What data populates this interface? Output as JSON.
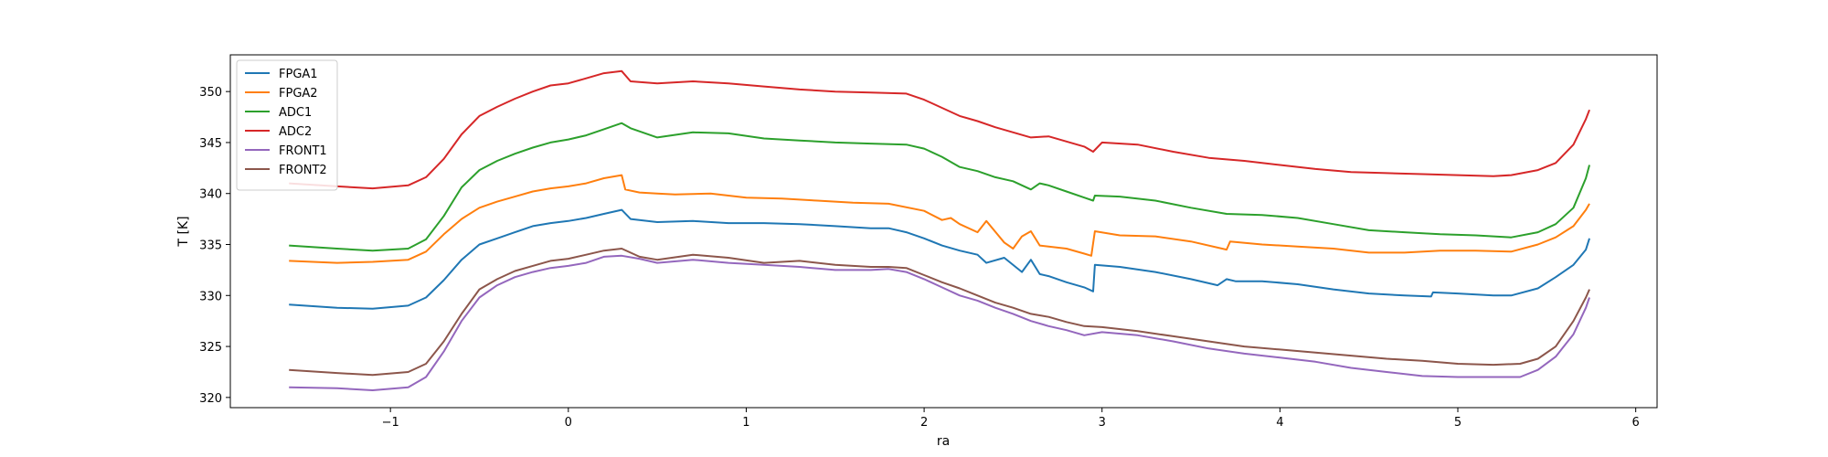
{
  "chart_data": {
    "type": "line",
    "xlabel": "ra",
    "ylabel": "T [K]",
    "xlim": [
      -1.9,
      6.12
    ],
    "ylim": [
      319,
      353.6
    ],
    "xticks": [
      -1,
      0,
      1,
      2,
      3,
      4,
      5,
      6
    ],
    "yticks": [
      320,
      325,
      330,
      335,
      340,
      345,
      350
    ],
    "grid": false,
    "legend_position": "upper-left",
    "series": [
      {
        "name": "FPGA1",
        "color": "#1f77b4",
        "x": [
          -1.57,
          -1.3,
          -1.1,
          -0.9,
          -0.8,
          -0.7,
          -0.6,
          -0.5,
          -0.4,
          -0.3,
          -0.2,
          -0.1,
          0,
          0.1,
          0.2,
          0.3,
          0.35,
          0.5,
          0.7,
          0.9,
          1.1,
          1.3,
          1.5,
          1.7,
          1.8,
          1.9,
          2.0,
          2.1,
          2.2,
          2.3,
          2.35,
          2.45,
          2.55,
          2.6,
          2.65,
          2.7,
          2.8,
          2.9,
          2.95,
          2.96,
          3.1,
          3.3,
          3.5,
          3.65,
          3.7,
          3.75,
          3.9,
          4.1,
          4.3,
          4.5,
          4.7,
          4.85,
          4.86,
          5.0,
          5.2,
          5.3,
          5.45,
          5.55,
          5.65,
          5.72,
          5.74
        ],
        "y": [
          329.1,
          328.8,
          328.7,
          329.0,
          329.8,
          331.5,
          333.5,
          335.0,
          335.6,
          336.2,
          336.8,
          337.1,
          337.3,
          337.6,
          338.0,
          338.4,
          337.5,
          337.2,
          337.3,
          337.1,
          337.1,
          337.0,
          336.8,
          336.6,
          336.6,
          336.2,
          335.6,
          334.9,
          334.4,
          334.0,
          333.2,
          333.7,
          332.3,
          333.5,
          332.1,
          331.9,
          331.3,
          330.8,
          330.4,
          333.0,
          332.8,
          332.3,
          331.6,
          331.0,
          331.6,
          331.4,
          331.4,
          331.1,
          330.6,
          330.2,
          330.0,
          329.9,
          330.3,
          330.2,
          330.0,
          330.0,
          330.7,
          331.8,
          333.0,
          334.5,
          335.6
        ]
      },
      {
        "name": "FPGA2",
        "color": "#ff7f0e",
        "x": [
          -1.57,
          -1.3,
          -1.1,
          -0.9,
          -0.8,
          -0.7,
          -0.6,
          -0.5,
          -0.4,
          -0.3,
          -0.2,
          -0.1,
          0,
          0.1,
          0.2,
          0.3,
          0.32,
          0.4,
          0.5,
          0.6,
          0.8,
          1.0,
          1.2,
          1.4,
          1.6,
          1.8,
          2.0,
          2.1,
          2.15,
          2.2,
          2.3,
          2.35,
          2.45,
          2.5,
          2.55,
          2.6,
          2.65,
          2.7,
          2.8,
          2.9,
          2.94,
          2.96,
          3.1,
          3.3,
          3.5,
          3.7,
          3.72,
          3.9,
          4.1,
          4.3,
          4.5,
          4.7,
          4.9,
          5.1,
          5.3,
          5.45,
          5.55,
          5.65,
          5.72,
          5.74
        ],
        "y": [
          333.4,
          333.2,
          333.3,
          333.5,
          334.3,
          336.0,
          337.5,
          338.6,
          339.2,
          339.7,
          340.2,
          340.5,
          340.7,
          341.0,
          341.5,
          341.8,
          340.4,
          340.1,
          340.0,
          339.9,
          340.0,
          339.6,
          339.5,
          339.3,
          339.1,
          339.0,
          338.3,
          337.4,
          337.6,
          337.0,
          336.2,
          337.3,
          335.2,
          334.6,
          335.8,
          336.3,
          334.9,
          334.8,
          334.6,
          334.1,
          333.9,
          336.3,
          335.9,
          335.8,
          335.3,
          334.5,
          335.3,
          335.0,
          334.8,
          334.6,
          334.2,
          334.2,
          334.4,
          334.4,
          334.3,
          335.0,
          335.7,
          336.8,
          338.4,
          339.0
        ]
      },
      {
        "name": "ADC1",
        "color": "#2ca02c",
        "x": [
          -1.57,
          -1.3,
          -1.1,
          -0.9,
          -0.8,
          -0.7,
          -0.6,
          -0.5,
          -0.4,
          -0.3,
          -0.2,
          -0.1,
          0,
          0.1,
          0.2,
          0.3,
          0.35,
          0.5,
          0.7,
          0.9,
          1.1,
          1.3,
          1.5,
          1.7,
          1.9,
          2.0,
          2.1,
          2.2,
          2.3,
          2.4,
          2.5,
          2.6,
          2.65,
          2.7,
          2.8,
          2.9,
          2.95,
          2.96,
          3.1,
          3.3,
          3.5,
          3.7,
          3.9,
          4.1,
          4.3,
          4.5,
          4.7,
          4.9,
          5.1,
          5.3,
          5.45,
          5.55,
          5.65,
          5.72,
          5.74
        ],
        "y": [
          334.9,
          334.6,
          334.4,
          334.6,
          335.5,
          337.8,
          340.6,
          342.3,
          343.2,
          343.9,
          344.5,
          345.0,
          345.3,
          345.7,
          346.3,
          346.9,
          346.4,
          345.5,
          346.0,
          345.9,
          345.4,
          345.2,
          345.0,
          344.9,
          344.8,
          344.4,
          343.6,
          342.6,
          342.2,
          341.6,
          341.2,
          340.4,
          341.0,
          340.8,
          340.2,
          339.6,
          339.3,
          339.8,
          339.7,
          339.3,
          338.6,
          338.0,
          337.9,
          337.6,
          337.0,
          336.4,
          336.2,
          336.0,
          335.9,
          335.7,
          336.2,
          337.0,
          338.6,
          341.5,
          342.8
        ]
      },
      {
        "name": "ADC2",
        "color": "#d62728",
        "x": [
          -1.57,
          -1.3,
          -1.1,
          -0.9,
          -0.8,
          -0.7,
          -0.6,
          -0.5,
          -0.4,
          -0.3,
          -0.2,
          -0.1,
          0,
          0.1,
          0.2,
          0.3,
          0.35,
          0.5,
          0.7,
          0.9,
          1.1,
          1.3,
          1.5,
          1.7,
          1.9,
          2.0,
          2.1,
          2.2,
          2.3,
          2.4,
          2.5,
          2.6,
          2.7,
          2.8,
          2.9,
          2.95,
          3.0,
          3.2,
          3.4,
          3.6,
          3.8,
          4.0,
          4.2,
          4.4,
          4.6,
          4.8,
          5.0,
          5.2,
          5.3,
          5.45,
          5.55,
          5.65,
          5.72,
          5.74
        ],
        "y": [
          341.0,
          340.7,
          340.5,
          340.8,
          341.6,
          343.4,
          345.8,
          347.6,
          348.5,
          349.3,
          350.0,
          350.6,
          350.8,
          351.3,
          351.8,
          352.0,
          351.0,
          350.8,
          351.0,
          350.8,
          350.5,
          350.2,
          350.0,
          349.9,
          349.8,
          349.2,
          348.4,
          347.6,
          347.1,
          346.5,
          346.0,
          345.5,
          345.6,
          345.1,
          344.6,
          344.1,
          345.0,
          344.8,
          344.1,
          343.5,
          343.2,
          342.8,
          342.4,
          342.1,
          342.0,
          341.9,
          341.8,
          341.7,
          341.8,
          342.3,
          343.0,
          344.8,
          347.3,
          348.2
        ]
      },
      {
        "name": "FRONT1",
        "color": "#9467bd",
        "x": [
          -1.57,
          -1.3,
          -1.1,
          -0.9,
          -0.8,
          -0.7,
          -0.6,
          -0.5,
          -0.4,
          -0.3,
          -0.2,
          -0.1,
          0,
          0.1,
          0.2,
          0.3,
          0.4,
          0.5,
          0.7,
          0.9,
          1.1,
          1.3,
          1.5,
          1.7,
          1.8,
          1.9,
          2.0,
          2.1,
          2.2,
          2.3,
          2.4,
          2.5,
          2.6,
          2.7,
          2.8,
          2.9,
          3.0,
          3.2,
          3.4,
          3.6,
          3.8,
          4.0,
          4.2,
          4.4,
          4.6,
          4.8,
          5.0,
          5.2,
          5.35,
          5.45,
          5.55,
          5.65,
          5.72,
          5.74
        ],
        "y": [
          321.0,
          320.9,
          320.7,
          321.0,
          322.0,
          324.5,
          327.5,
          329.8,
          331.0,
          331.8,
          332.3,
          332.7,
          332.9,
          333.2,
          333.8,
          333.9,
          333.6,
          333.2,
          333.5,
          333.2,
          333.0,
          332.8,
          332.5,
          332.5,
          332.6,
          332.3,
          331.6,
          330.8,
          330.0,
          329.5,
          328.8,
          328.2,
          327.5,
          327.0,
          326.6,
          326.1,
          326.4,
          326.1,
          325.5,
          324.8,
          324.3,
          323.9,
          323.5,
          322.9,
          322.5,
          322.1,
          322.0,
          322.0,
          322.0,
          322.7,
          324.0,
          326.2,
          328.8,
          329.8
        ]
      },
      {
        "name": "FRONT2",
        "color": "#8c564b",
        "x": [
          -1.57,
          -1.3,
          -1.1,
          -0.9,
          -0.8,
          -0.7,
          -0.6,
          -0.5,
          -0.4,
          -0.3,
          -0.2,
          -0.1,
          0,
          0.1,
          0.2,
          0.3,
          0.4,
          0.5,
          0.7,
          0.9,
          1.1,
          1.3,
          1.5,
          1.7,
          1.8,
          1.9,
          2.0,
          2.1,
          2.2,
          2.3,
          2.4,
          2.5,
          2.6,
          2.7,
          2.8,
          2.9,
          3.0,
          3.2,
          3.4,
          3.6,
          3.8,
          4.0,
          4.2,
          4.4,
          4.6,
          4.8,
          5.0,
          5.2,
          5.35,
          5.45,
          5.55,
          5.65,
          5.72,
          5.74
        ],
        "y": [
          322.7,
          322.4,
          322.2,
          322.5,
          323.3,
          325.5,
          328.2,
          330.6,
          331.6,
          332.4,
          332.9,
          333.4,
          333.6,
          334.0,
          334.4,
          334.6,
          333.8,
          333.5,
          334.0,
          333.7,
          333.2,
          333.4,
          333.0,
          332.8,
          332.8,
          332.7,
          332.0,
          331.3,
          330.7,
          330.0,
          329.3,
          328.8,
          328.2,
          327.9,
          327.4,
          327.0,
          326.9,
          326.5,
          326.0,
          325.5,
          325.0,
          324.7,
          324.4,
          324.1,
          323.8,
          323.6,
          323.3,
          323.2,
          323.3,
          323.8,
          325.0,
          327.5,
          329.8,
          330.6
        ]
      }
    ]
  }
}
